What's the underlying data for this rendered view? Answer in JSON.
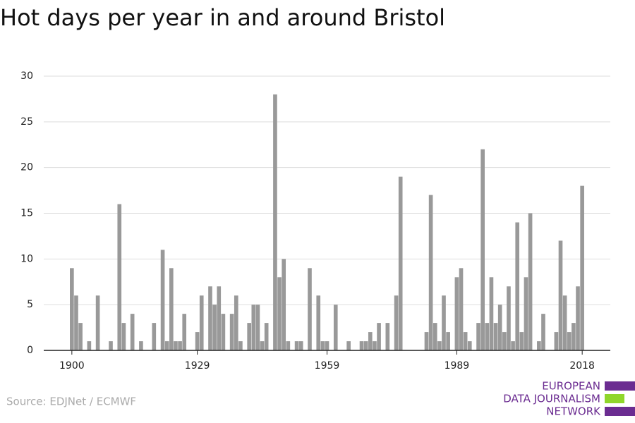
{
  "chart_data": {
    "type": "bar",
    "title": "Hot days per year in and around Bristol",
    "source": "Source: EDJNet / ECMWF",
    "logo": [
      "EUROPEAN",
      "DATA JOURNALISM",
      "NETWORK"
    ],
    "x": [
      1900,
      1901,
      1902,
      1903,
      1904,
      1905,
      1906,
      1907,
      1908,
      1909,
      1910,
      1911,
      1912,
      1913,
      1914,
      1915,
      1916,
      1917,
      1918,
      1919,
      1920,
      1921,
      1922,
      1923,
      1924,
      1925,
      1926,
      1927,
      1928,
      1929,
      1930,
      1931,
      1932,
      1933,
      1934,
      1935,
      1936,
      1937,
      1938,
      1939,
      1940,
      1941,
      1942,
      1943,
      1944,
      1945,
      1946,
      1947,
      1948,
      1949,
      1950,
      1951,
      1952,
      1953,
      1954,
      1955,
      1956,
      1957,
      1958,
      1959,
      1960,
      1961,
      1962,
      1963,
      1964,
      1965,
      1966,
      1967,
      1968,
      1969,
      1970,
      1971,
      1972,
      1973,
      1974,
      1975,
      1976,
      1977,
      1978,
      1979,
      1980,
      1981,
      1982,
      1983,
      1984,
      1985,
      1986,
      1987,
      1988,
      1989,
      1990,
      1991,
      1992,
      1993,
      1994,
      1995,
      1996,
      1997,
      1998,
      1999,
      2000,
      2001,
      2002,
      2003,
      2004,
      2005,
      2006,
      2007,
      2008,
      2009,
      2010,
      2011,
      2012,
      2013,
      2014,
      2015,
      2016,
      2017,
      2018
    ],
    "values": [
      9,
      6,
      3,
      0,
      1,
      0,
      6,
      0,
      0,
      1,
      0,
      16,
      3,
      0,
      4,
      0,
      1,
      0,
      0,
      3,
      0,
      11,
      1,
      9,
      1,
      1,
      4,
      0,
      0,
      2,
      6,
      0,
      7,
      5,
      7,
      4,
      0,
      4,
      6,
      1,
      0,
      3,
      5,
      5,
      1,
      3,
      0,
      28,
      8,
      10,
      1,
      0,
      1,
      1,
      0,
      9,
      0,
      6,
      1,
      1,
      0,
      5,
      0,
      0,
      1,
      0,
      0,
      1,
      1,
      2,
      1,
      3,
      0,
      3,
      0,
      6,
      19,
      0,
      0,
      0,
      0,
      0,
      2,
      17,
      3,
      1,
      6,
      2,
      0,
      8,
      9,
      2,
      1,
      0,
      3,
      22,
      3,
      8,
      3,
      5,
      2,
      7,
      1,
      14,
      2,
      8,
      15,
      0,
      1,
      4,
      0,
      0,
      2,
      12,
      6,
      2,
      3,
      7,
      18
    ],
    "color": "#999999",
    "xlim": [
      1893.5,
      2024.5
    ],
    "xticks": [
      1900,
      1929,
      1959,
      1989,
      2018
    ],
    "ylim": [
      0,
      30
    ],
    "yticks": [
      0,
      5,
      10,
      15,
      20,
      25,
      30
    ],
    "grid": true
  }
}
